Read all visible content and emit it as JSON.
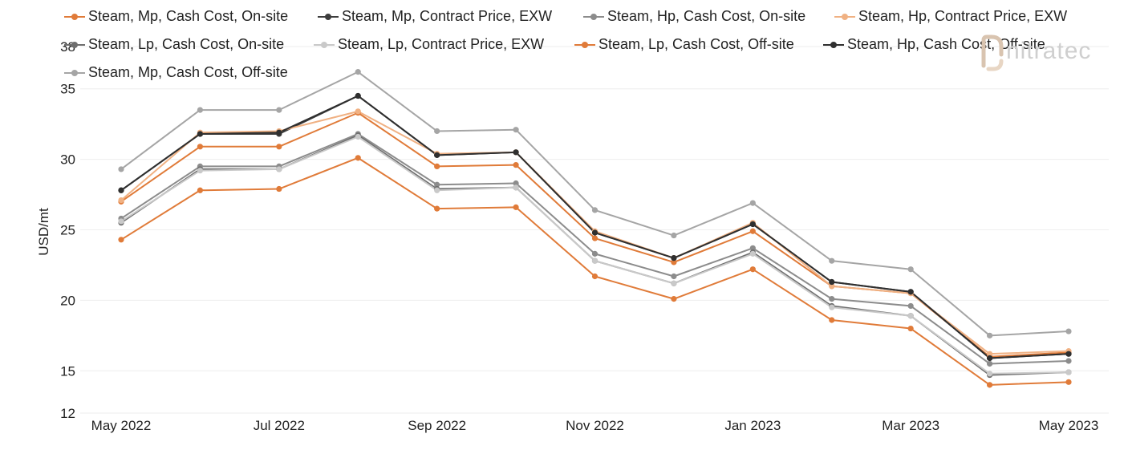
{
  "brand": {
    "name": "nitratec"
  },
  "chart_data": {
    "type": "line",
    "ylabel": "USD/mt",
    "ylim": [
      12,
      38
    ],
    "yticks": [
      12,
      15,
      20,
      25,
      30,
      35,
      38
    ],
    "x": [
      "May 2022",
      "Jun 2022",
      "Jul 2022",
      "Aug 2022",
      "Sep 2022",
      "Oct 2022",
      "Nov 2022",
      "Dec 2022",
      "Jan 2023",
      "Feb 2023",
      "Mar 2023",
      "Apr 2023",
      "May 2023"
    ],
    "xtick_labels": [
      "May 2022",
      "Jul 2022",
      "Sep 2022",
      "Nov 2022",
      "Jan 2023",
      "Mar 2023",
      "May 2023"
    ],
    "legend_position": "top",
    "grid": "horizontal",
    "series": [
      {
        "name": "Steam, Mp, Cash Cost, On-site",
        "color": "#e07b39",
        "values": [
          27.0,
          30.9,
          30.9,
          33.3,
          29.5,
          29.6,
          24.4,
          22.7,
          24.9,
          21.0,
          20.5,
          16.0,
          16.3
        ]
      },
      {
        "name": "Steam, Mp, Contract Price, EXW",
        "color": "#3d3d3d",
        "values": [
          27.8,
          31.8,
          31.8,
          34.5,
          30.3,
          30.5,
          24.8,
          23.0,
          25.4,
          21.3,
          20.6,
          15.9,
          16.2
        ]
      },
      {
        "name": "Steam, Hp, Cash Cost, On-site",
        "color": "#8c8c8c",
        "values": [
          25.8,
          29.5,
          29.5,
          31.8,
          28.2,
          28.3,
          23.3,
          21.7,
          23.7,
          20.1,
          19.6,
          15.5,
          15.7
        ]
      },
      {
        "name": "Steam, Hp, Contract Price, EXW",
        "color": "#f0b183",
        "values": [
          27.1,
          31.9,
          32.0,
          33.4,
          30.4,
          30.5,
          24.9,
          23.0,
          25.5,
          21.0,
          20.5,
          16.2,
          16.4
        ]
      },
      {
        "name": "Steam, Lp, Cash Cost, On-site",
        "color": "#6e6e6e",
        "values": [
          25.5,
          29.3,
          29.3,
          31.7,
          27.9,
          28.0,
          22.8,
          21.2,
          23.4,
          19.6,
          18.9,
          14.7,
          14.9
        ]
      },
      {
        "name": "Steam, Lp, Contract Price, EXW",
        "color": "#c9c9c9",
        "values": [
          25.6,
          29.2,
          29.3,
          31.6,
          27.8,
          28.0,
          22.8,
          21.2,
          23.3,
          19.5,
          18.9,
          14.8,
          14.9
        ]
      },
      {
        "name": "Steam, Lp, Cash Cost, Off-site",
        "color": "#e07b39",
        "values": [
          24.3,
          27.8,
          27.9,
          30.1,
          26.5,
          26.6,
          21.7,
          20.1,
          22.2,
          18.6,
          18.0,
          14.0,
          14.2
        ]
      },
      {
        "name": "Steam, Hp, Cash Cost, Off-site",
        "color": "#2f2f2f",
        "values": [
          27.8,
          31.8,
          31.9,
          34.5,
          30.3,
          30.5,
          24.8,
          23.0,
          25.4,
          21.3,
          20.6,
          15.9,
          16.2
        ]
      },
      {
        "name": "Steam, Mp, Cash Cost, Off-site",
        "color": "#a5a5a5",
        "values": [
          29.3,
          33.5,
          33.5,
          36.2,
          32.0,
          32.1,
          26.4,
          24.6,
          26.9,
          22.8,
          22.2,
          17.5,
          17.8
        ]
      }
    ]
  }
}
